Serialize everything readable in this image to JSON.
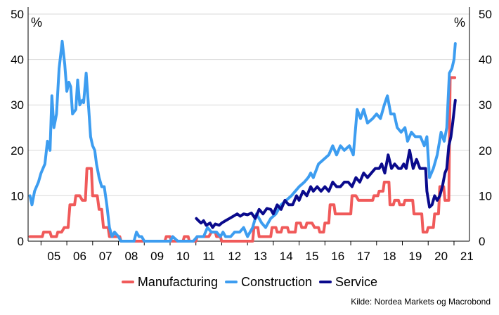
{
  "chart_data": {
    "type": "line",
    "y_unit_label": "%",
    "ylim": [
      0,
      50
    ],
    "yticks": [
      0,
      10,
      20,
      30,
      40,
      50
    ],
    "x_range": [
      2004.5,
      2021.6
    ],
    "x_ticks": [
      {
        "label": "05",
        "x": 2005.5
      },
      {
        "label": "06",
        "x": 2006.5
      },
      {
        "label": "07",
        "x": 2007.5
      },
      {
        "label": "08",
        "x": 2008.5
      },
      {
        "label": "09",
        "x": 2009.5
      },
      {
        "label": "10",
        "x": 2010.5
      },
      {
        "label": "11",
        "x": 2011.5
      },
      {
        "label": "12",
        "x": 2012.5
      },
      {
        "label": "13",
        "x": 2013.5
      },
      {
        "label": "14",
        "x": 2014.5
      },
      {
        "label": "15",
        "x": 2015.5
      },
      {
        "label": "16",
        "x": 2016.5
      },
      {
        "label": "17",
        "x": 2017.5
      },
      {
        "label": "18",
        "x": 2018.5
      },
      {
        "label": "19",
        "x": 2019.5
      },
      {
        "label": "20",
        "x": 2020.5
      },
      {
        "label": "21",
        "x": 2021.5
      }
    ],
    "grid": true,
    "legend_position": "bottom",
    "series": [
      {
        "name": "Manufacturing",
        "color": "#f05a5a",
        "points": [
          [
            2004.57,
            1
          ],
          [
            2005.05,
            1
          ],
          [
            2005.1,
            2
          ],
          [
            2005.35,
            2
          ],
          [
            2005.4,
            1
          ],
          [
            2005.6,
            1
          ],
          [
            2005.65,
            2
          ],
          [
            2005.8,
            2
          ],
          [
            2005.9,
            3
          ],
          [
            2006.05,
            3
          ],
          [
            2006.12,
            8
          ],
          [
            2006.3,
            8
          ],
          [
            2006.35,
            10
          ],
          [
            2006.5,
            10
          ],
          [
            2006.6,
            9
          ],
          [
            2006.72,
            9
          ],
          [
            2006.78,
            16
          ],
          [
            2006.95,
            16
          ],
          [
            2007.0,
            10
          ],
          [
            2007.18,
            10
          ],
          [
            2007.25,
            7
          ],
          [
            2007.35,
            7
          ],
          [
            2007.42,
            3
          ],
          [
            2007.6,
            3
          ],
          [
            2007.65,
            1
          ],
          [
            2008.05,
            1
          ],
          [
            2008.1,
            0
          ],
          [
            2009.8,
            0
          ],
          [
            2009.85,
            1
          ],
          [
            2010.0,
            1
          ],
          [
            2010.05,
            0
          ],
          [
            2010.5,
            0
          ],
          [
            2010.55,
            1
          ],
          [
            2010.7,
            1
          ],
          [
            2010.75,
            0
          ],
          [
            2011.0,
            0
          ],
          [
            2011.05,
            1
          ],
          [
            2011.5,
            1
          ],
          [
            2011.6,
            2
          ],
          [
            2011.75,
            2
          ],
          [
            2011.8,
            1
          ],
          [
            2011.95,
            1
          ],
          [
            2012.0,
            0
          ],
          [
            2013.2,
            0
          ],
          [
            2013.25,
            3
          ],
          [
            2013.4,
            3
          ],
          [
            2013.45,
            1
          ],
          [
            2013.9,
            1
          ],
          [
            2013.95,
            3
          ],
          [
            2014.1,
            3
          ],
          [
            2014.15,
            2
          ],
          [
            2014.3,
            2
          ],
          [
            2014.35,
            3
          ],
          [
            2014.55,
            3
          ],
          [
            2014.6,
            2
          ],
          [
            2014.85,
            2
          ],
          [
            2014.9,
            4
          ],
          [
            2015.05,
            4
          ],
          [
            2015.1,
            3
          ],
          [
            2015.25,
            3
          ],
          [
            2015.3,
            4
          ],
          [
            2015.5,
            4
          ],
          [
            2015.6,
            3
          ],
          [
            2015.75,
            3
          ],
          [
            2015.8,
            2
          ],
          [
            2015.95,
            2
          ],
          [
            2016.0,
            4
          ],
          [
            2016.15,
            4
          ],
          [
            2016.2,
            8
          ],
          [
            2016.35,
            8
          ],
          [
            2016.4,
            6
          ],
          [
            2017.0,
            6
          ],
          [
            2017.05,
            10
          ],
          [
            2017.2,
            10
          ],
          [
            2017.3,
            9
          ],
          [
            2017.85,
            9
          ],
          [
            2017.9,
            10
          ],
          [
            2018.05,
            10
          ],
          [
            2018.1,
            11
          ],
          [
            2018.25,
            11
          ],
          [
            2018.3,
            13
          ],
          [
            2018.48,
            13
          ],
          [
            2018.52,
            8
          ],
          [
            2018.65,
            8
          ],
          [
            2018.7,
            9
          ],
          [
            2018.85,
            9
          ],
          [
            2018.9,
            8
          ],
          [
            2019.05,
            8
          ],
          [
            2019.1,
            9
          ],
          [
            2019.4,
            9
          ],
          [
            2019.45,
            6
          ],
          [
            2019.75,
            6
          ],
          [
            2019.8,
            2
          ],
          [
            2019.95,
            2
          ],
          [
            2020.0,
            3
          ],
          [
            2020.2,
            3
          ],
          [
            2020.25,
            6
          ],
          [
            2020.4,
            6
          ],
          [
            2020.45,
            12
          ],
          [
            2020.6,
            12
          ],
          [
            2020.65,
            9
          ],
          [
            2020.8,
            9
          ],
          [
            2020.85,
            36
          ],
          [
            2021.03,
            36
          ]
        ]
      },
      {
        "name": "Construction",
        "color": "#3d9df0",
        "points": [
          [
            2004.57,
            10
          ],
          [
            2004.65,
            8
          ],
          [
            2004.75,
            11
          ],
          [
            2004.9,
            13
          ],
          [
            2005.0,
            15
          ],
          [
            2005.15,
            17
          ],
          [
            2005.25,
            22
          ],
          [
            2005.35,
            20
          ],
          [
            2005.42,
            32
          ],
          [
            2005.5,
            25
          ],
          [
            2005.6,
            28
          ],
          [
            2005.7,
            38
          ],
          [
            2005.82,
            44
          ],
          [
            2005.92,
            39
          ],
          [
            2006.0,
            33
          ],
          [
            2006.08,
            35
          ],
          [
            2006.15,
            34
          ],
          [
            2006.22,
            28
          ],
          [
            2006.35,
            29
          ],
          [
            2006.42,
            35.5
          ],
          [
            2006.5,
            30
          ],
          [
            2006.6,
            31
          ],
          [
            2006.65,
            30.5
          ],
          [
            2006.75,
            37
          ],
          [
            2006.85,
            29
          ],
          [
            2006.92,
            23
          ],
          [
            2007.0,
            21
          ],
          [
            2007.08,
            20
          ],
          [
            2007.15,
            17
          ],
          [
            2007.25,
            14
          ],
          [
            2007.35,
            12
          ],
          [
            2007.45,
            12
          ],
          [
            2007.55,
            8
          ],
          [
            2007.65,
            3
          ],
          [
            2007.75,
            1
          ],
          [
            2007.85,
            2
          ],
          [
            2008.0,
            1
          ],
          [
            2008.1,
            0
          ],
          [
            2008.6,
            0
          ],
          [
            2008.7,
            2
          ],
          [
            2008.8,
            1
          ],
          [
            2008.9,
            1
          ],
          [
            2009.0,
            0
          ],
          [
            2010.0,
            0
          ],
          [
            2010.1,
            1
          ],
          [
            2010.3,
            0
          ],
          [
            2010.9,
            0
          ],
          [
            2011.05,
            1
          ],
          [
            2011.3,
            1
          ],
          [
            2011.45,
            3
          ],
          [
            2011.6,
            2
          ],
          [
            2011.8,
            2
          ],
          [
            2011.95,
            1
          ],
          [
            2012.05,
            2
          ],
          [
            2012.15,
            1
          ],
          [
            2012.35,
            1
          ],
          [
            2012.5,
            2
          ],
          [
            2012.7,
            2
          ],
          [
            2012.85,
            3
          ],
          [
            2013.0,
            1
          ],
          [
            2013.2,
            3
          ],
          [
            2013.35,
            6
          ],
          [
            2013.55,
            4
          ],
          [
            2013.7,
            3
          ],
          [
            2013.9,
            5
          ],
          [
            2014.1,
            6
          ],
          [
            2014.3,
            8
          ],
          [
            2014.5,
            9
          ],
          [
            2014.7,
            10
          ],
          [
            2014.85,
            11
          ],
          [
            2015.0,
            12
          ],
          [
            2015.2,
            13
          ],
          [
            2015.35,
            14
          ],
          [
            2015.45,
            15
          ],
          [
            2015.55,
            14
          ],
          [
            2015.75,
            17
          ],
          [
            2015.95,
            18
          ],
          [
            2016.15,
            19
          ],
          [
            2016.3,
            21
          ],
          [
            2016.45,
            19
          ],
          [
            2016.6,
            21
          ],
          [
            2016.75,
            20
          ],
          [
            2016.95,
            21
          ],
          [
            2017.1,
            19
          ],
          [
            2017.25,
            29
          ],
          [
            2017.38,
            27
          ],
          [
            2017.5,
            29
          ],
          [
            2017.65,
            26
          ],
          [
            2017.85,
            27
          ],
          [
            2018.0,
            28
          ],
          [
            2018.15,
            27
          ],
          [
            2018.3,
            30
          ],
          [
            2018.42,
            32
          ],
          [
            2018.55,
            28
          ],
          [
            2018.68,
            28
          ],
          [
            2018.8,
            25
          ],
          [
            2018.95,
            24
          ],
          [
            2019.1,
            25
          ],
          [
            2019.2,
            22
          ],
          [
            2019.35,
            24
          ],
          [
            2019.5,
            23
          ],
          [
            2019.7,
            23
          ],
          [
            2019.85,
            21
          ],
          [
            2019.95,
            23
          ],
          [
            2020.05,
            14
          ],
          [
            2020.2,
            16
          ],
          [
            2020.35,
            19
          ],
          [
            2020.5,
            24
          ],
          [
            2020.62,
            22
          ],
          [
            2020.72,
            25
          ],
          [
            2020.82,
            37
          ],
          [
            2020.92,
            38
          ],
          [
            2021.0,
            40
          ],
          [
            2021.05,
            43.5
          ]
        ]
      },
      {
        "name": "Service",
        "color": "#0a0a8c",
        "points": [
          [
            2011.02,
            5
          ],
          [
            2011.1,
            4.5
          ],
          [
            2011.2,
            4
          ],
          [
            2011.3,
            4.5
          ],
          [
            2011.4,
            3.5
          ],
          [
            2011.55,
            4
          ],
          [
            2011.65,
            3
          ],
          [
            2011.75,
            3.8
          ],
          [
            2011.9,
            3.5
          ],
          [
            2012.0,
            4
          ],
          [
            2012.15,
            4.5
          ],
          [
            2012.3,
            5
          ],
          [
            2012.45,
            5.5
          ],
          [
            2012.6,
            6
          ],
          [
            2012.72,
            5.5
          ],
          [
            2012.85,
            6
          ],
          [
            2013.0,
            5.8
          ],
          [
            2013.15,
            6.2
          ],
          [
            2013.3,
            5
          ],
          [
            2013.45,
            7
          ],
          [
            2013.6,
            6
          ],
          [
            2013.75,
            7.2
          ],
          [
            2013.9,
            7
          ],
          [
            2014.0,
            6
          ],
          [
            2014.15,
            8
          ],
          [
            2014.3,
            7
          ],
          [
            2014.45,
            9
          ],
          [
            2014.6,
            8
          ],
          [
            2014.75,
            8
          ],
          [
            2014.9,
            10
          ],
          [
            2015.0,
            9
          ],
          [
            2015.15,
            11
          ],
          [
            2015.3,
            10
          ],
          [
            2015.45,
            12
          ],
          [
            2015.55,
            11
          ],
          [
            2015.7,
            12
          ],
          [
            2015.85,
            11
          ],
          [
            2016.0,
            12
          ],
          [
            2016.15,
            11
          ],
          [
            2016.3,
            13
          ],
          [
            2016.45,
            12
          ],
          [
            2016.6,
            12
          ],
          [
            2016.75,
            13
          ],
          [
            2016.9,
            13
          ],
          [
            2017.05,
            12
          ],
          [
            2017.2,
            14
          ],
          [
            2017.35,
            13
          ],
          [
            2017.5,
            15
          ],
          [
            2017.65,
            14
          ],
          [
            2017.8,
            15
          ],
          [
            2017.95,
            16
          ],
          [
            2018.1,
            16
          ],
          [
            2018.2,
            17
          ],
          [
            2018.32,
            15
          ],
          [
            2018.45,
            19
          ],
          [
            2018.58,
            16
          ],
          [
            2018.7,
            17
          ],
          [
            2018.85,
            16
          ],
          [
            2018.95,
            16
          ],
          [
            2019.05,
            17
          ],
          [
            2019.15,
            16
          ],
          [
            2019.28,
            20
          ],
          [
            2019.42,
            16
          ],
          [
            2019.55,
            18
          ],
          [
            2019.68,
            16
          ],
          [
            2019.8,
            16
          ],
          [
            2019.9,
            16
          ],
          [
            2019.95,
            11
          ],
          [
            2020.05,
            7.5
          ],
          [
            2020.15,
            8
          ],
          [
            2020.25,
            10
          ],
          [
            2020.35,
            9
          ],
          [
            2020.45,
            10
          ],
          [
            2020.55,
            12
          ],
          [
            2020.65,
            15
          ],
          [
            2020.72,
            16
          ],
          [
            2020.8,
            21
          ],
          [
            2020.88,
            23
          ],
          [
            2020.95,
            26
          ],
          [
            2021.05,
            31
          ]
        ]
      }
    ]
  },
  "legend": {
    "items": [
      {
        "label": "Manufacturing",
        "color": "#f05a5a"
      },
      {
        "label": "Construction",
        "color": "#3d9df0"
      },
      {
        "label": "Service",
        "color": "#0a0a8c"
      }
    ]
  },
  "source": "Kilde: Nordea Markets og Macrobond"
}
